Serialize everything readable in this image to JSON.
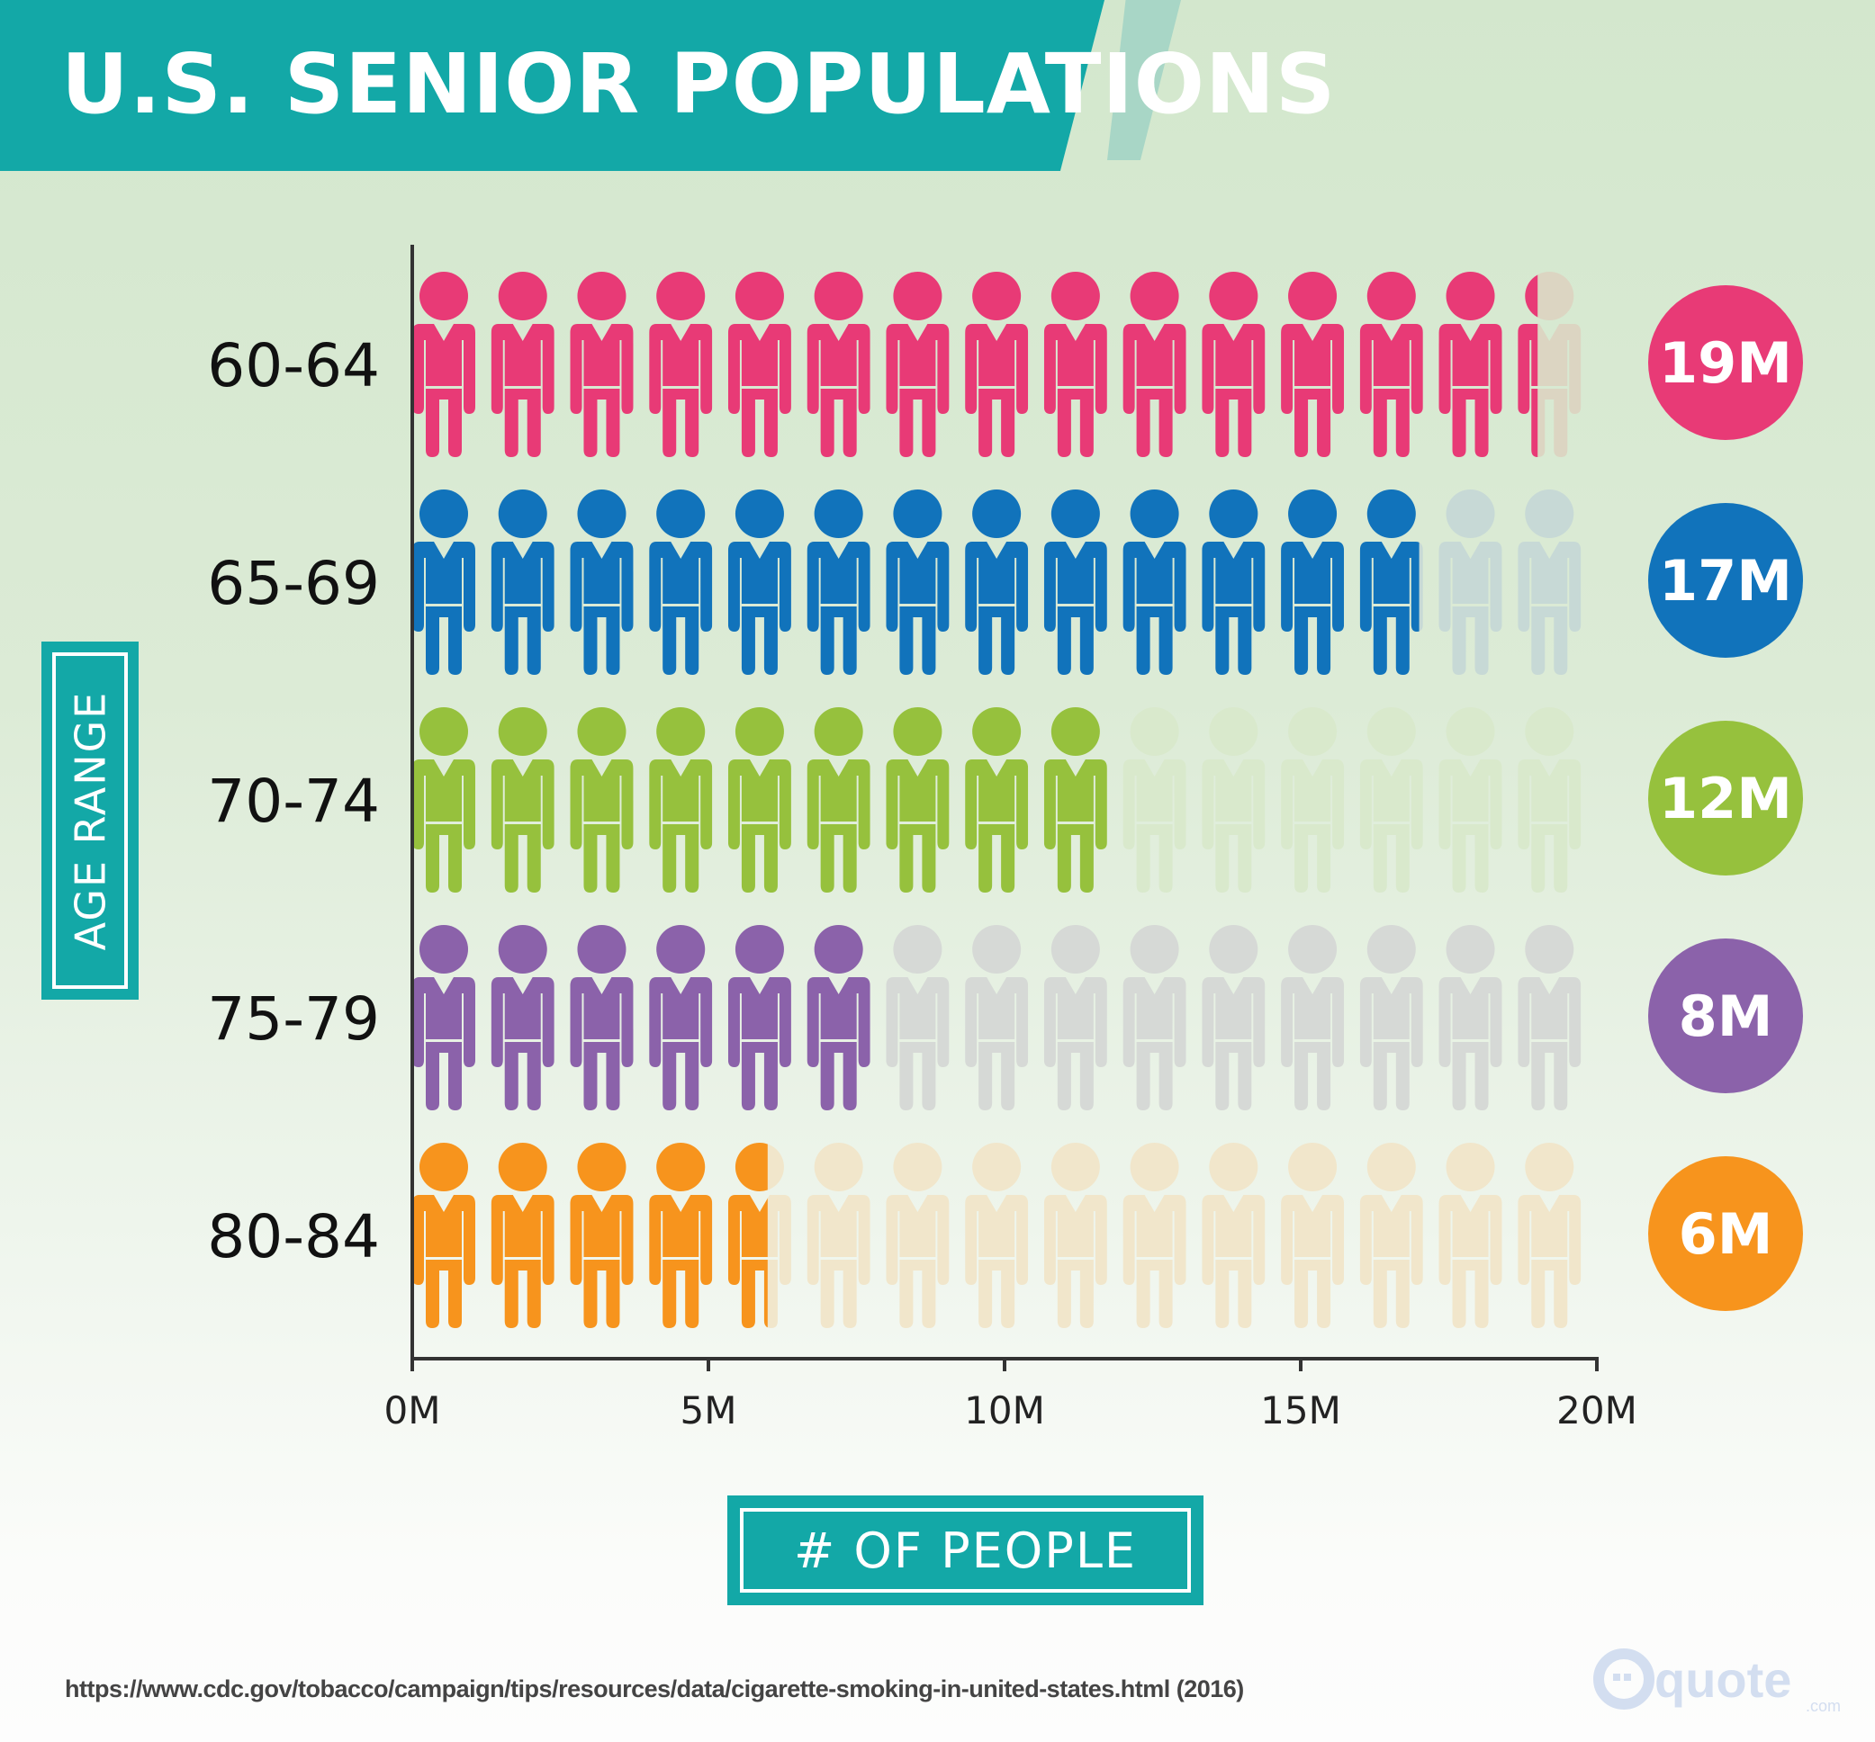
{
  "title": "U.S. SENIOR POPULATIONS",
  "colors": {
    "teal": "#13a8a7",
    "accent": "#a8d6c6"
  },
  "chart_data": {
    "type": "pictogram-bar",
    "title": "U.S. SENIOR POPULATIONS",
    "xlabel": "# OF PEOPLE",
    "ylabel": "AGE RANGE",
    "xlim": [
      0,
      20
    ],
    "x_unit": "M",
    "x_ticks": [
      "0M",
      "5M",
      "10M",
      "15M",
      "20M"
    ],
    "icon": "person-icon",
    "icons_per_row": 15,
    "categories": [
      "60-64",
      "65-69",
      "70-74",
      "75-79",
      "80-84"
    ],
    "values": [
      19,
      17,
      12,
      8,
      6
    ],
    "value_labels": [
      "19M",
      "17M",
      "12M",
      "8M",
      "6M"
    ],
    "series_colors": [
      "#e83a76",
      "#1173bb",
      "#96c13d",
      "#8b62aa",
      "#f7941d"
    ],
    "faded_colors": [
      "#dcd5c2",
      "#c7d9d6",
      "#d9e9cc",
      "#d6d9d6",
      "#f1e6cb"
    ],
    "grid": false
  },
  "footer": {
    "source": "https://www.cdc.gov/tobacco/campaign/tips/resources/data/cigarette-smoking-in-united-states.html (2016)",
    "logo": "quote.com"
  }
}
